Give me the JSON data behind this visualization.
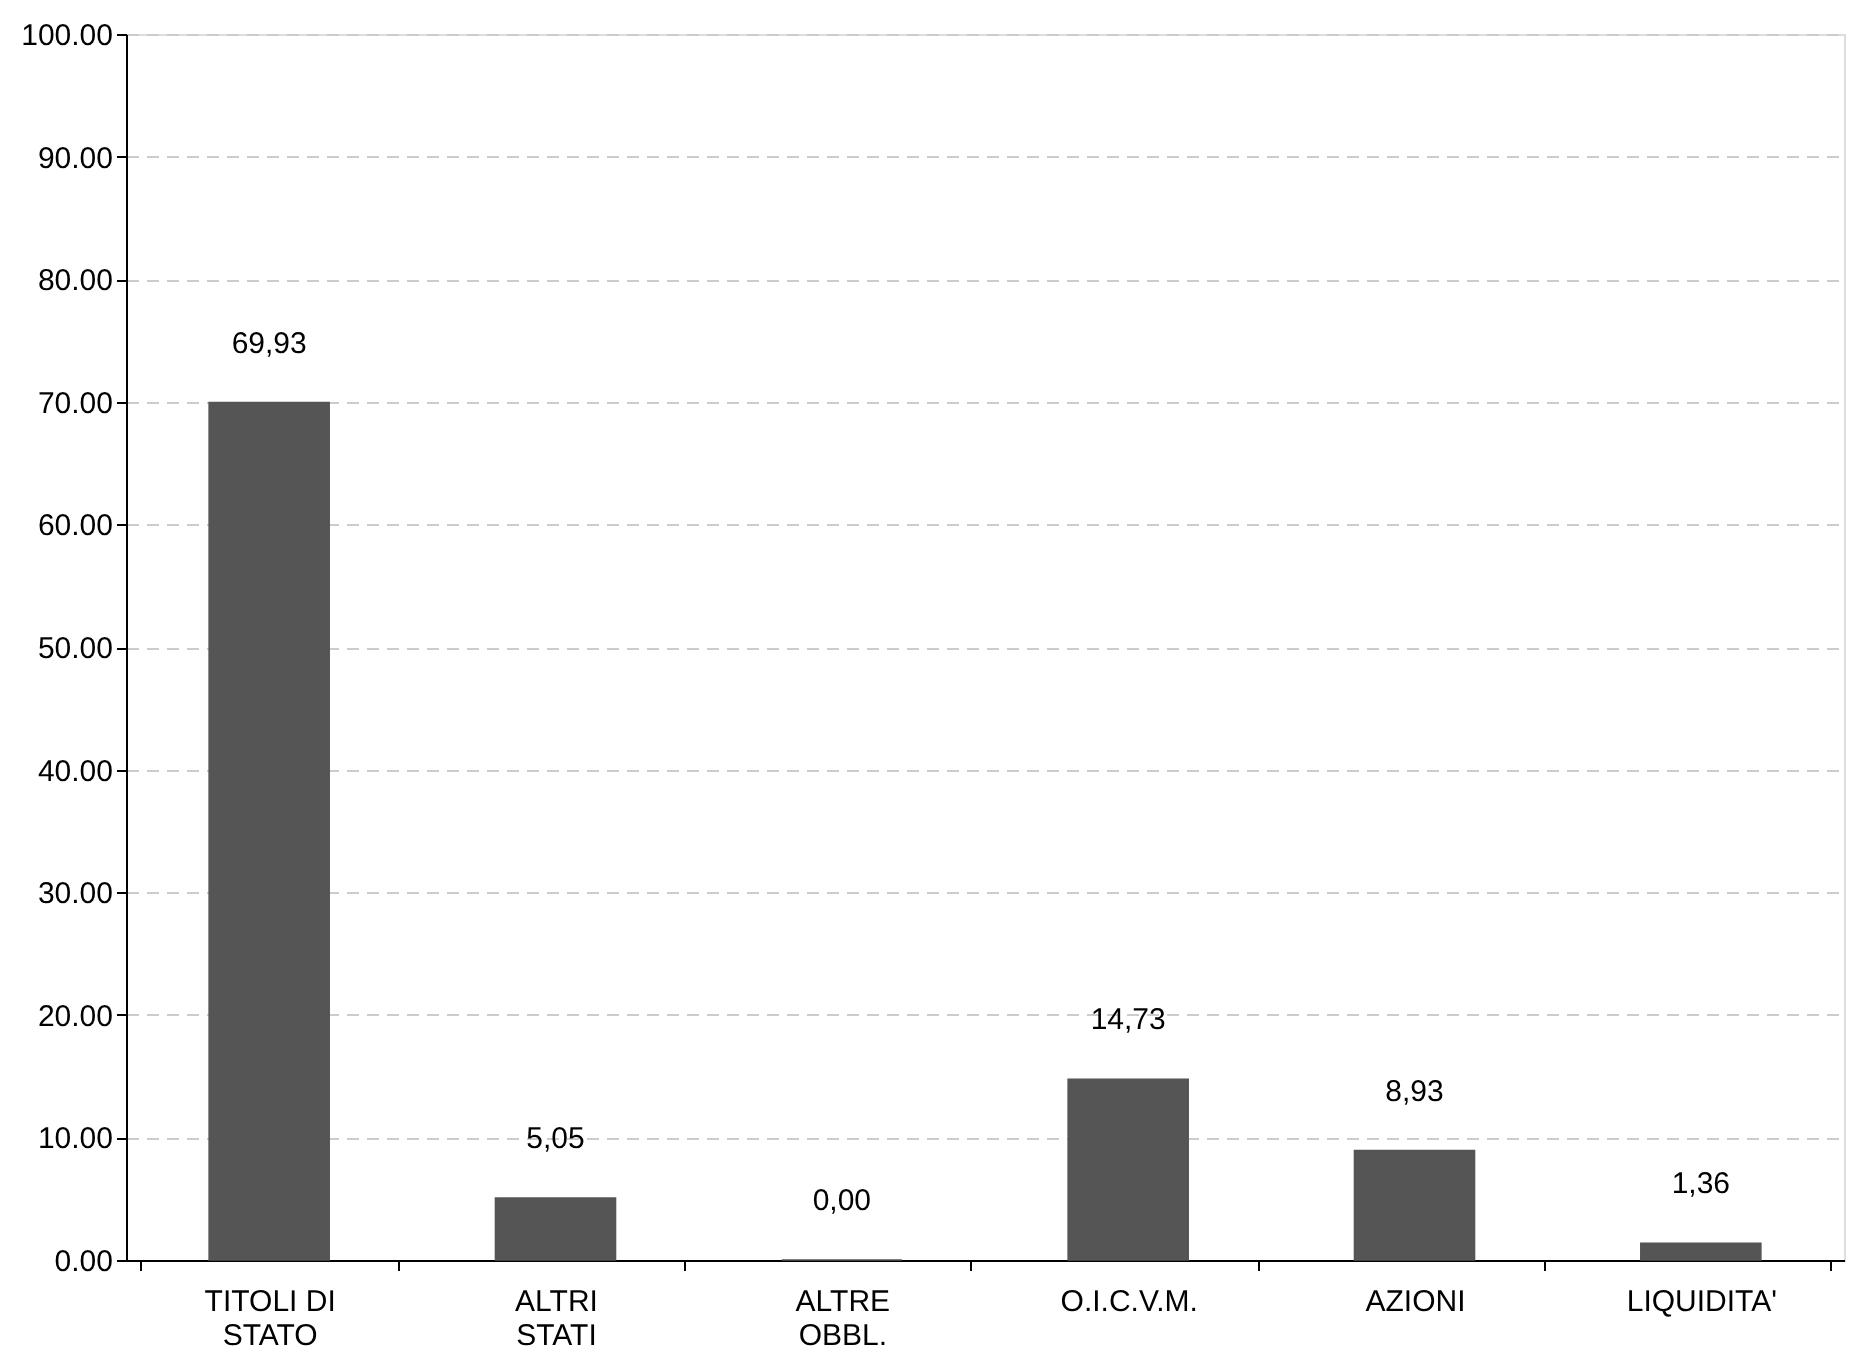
{
  "chart_data": {
    "type": "bar",
    "categories": [
      "TITOLI DI STATO",
      "ALTRI STATI",
      "ALTRE OBBL.",
      "O.I.C.V.M.",
      "AZIONI",
      "LIQUIDITA'"
    ],
    "values": [
      69.93,
      5.05,
      0.0,
      14.73,
      8.93,
      1.36
    ],
    "value_labels": [
      "69,93",
      "5,05",
      "0,00",
      "14,73",
      "8,93",
      "1,36"
    ],
    "color": "#555555",
    "ylim": [
      0,
      100
    ],
    "yticks": [
      {
        "value": 0,
        "label": "0.00"
      },
      {
        "value": 10,
        "label": "10.00"
      },
      {
        "value": 20,
        "label": "20.00"
      },
      {
        "value": 30,
        "label": "30.00"
      },
      {
        "value": 40,
        "label": "40.00"
      },
      {
        "value": 50,
        "label": "50.00"
      },
      {
        "value": 60,
        "label": "60.00"
      },
      {
        "value": 70,
        "label": "70.00"
      },
      {
        "value": 80,
        "label": "80.00"
      },
      {
        "value": 90,
        "label": "90.00"
      },
      {
        "value": 100,
        "label": "100.00"
      }
    ],
    "grid": "y"
  }
}
